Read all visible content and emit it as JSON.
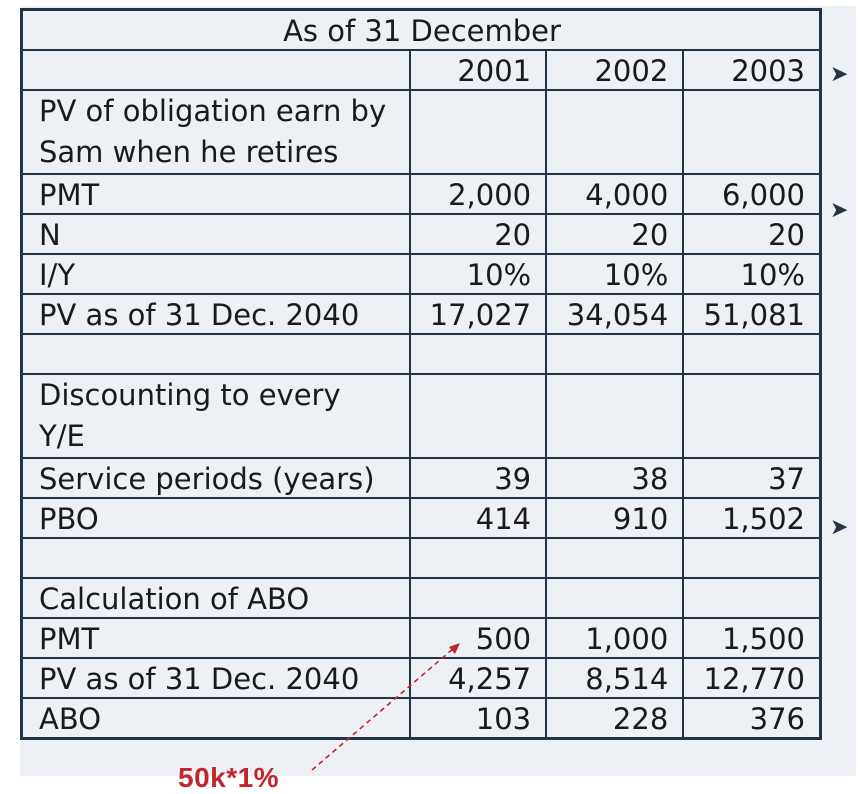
{
  "table": {
    "header_title": "As of 31 December",
    "years": [
      "2001",
      "2002",
      "2003"
    ],
    "rows": [
      {
        "label": "PV of obligation earn by Sam when he retires",
        "values": [
          "",
          "",
          ""
        ]
      },
      {
        "label": "PMT",
        "values": [
          "2,000",
          "4,000",
          "6,000"
        ]
      },
      {
        "label": "N",
        "values": [
          "20",
          "20",
          "20"
        ]
      },
      {
        "label": "I/Y",
        "values": [
          "10%",
          "10%",
          "10%"
        ]
      },
      {
        "label": "PV as of 31 Dec. 2040",
        "values": [
          "17,027",
          "34,054",
          "51,081"
        ]
      },
      {
        "label": "",
        "values": [
          "",
          "",
          ""
        ]
      },
      {
        "label": "Discounting to every Y/E",
        "values": [
          "",
          "",
          ""
        ]
      },
      {
        "label": "Service periods (years)",
        "values": [
          "39",
          "38",
          "37"
        ]
      },
      {
        "label": "PBO",
        "values": [
          "414",
          "910",
          "1,502"
        ]
      },
      {
        "label": "",
        "values": [
          "",
          "",
          ""
        ]
      },
      {
        "label": "Calculation of ABO",
        "values": [
          "",
          "",
          ""
        ]
      },
      {
        "label": "PMT",
        "values": [
          "500",
          "1,000",
          "1,500"
        ]
      },
      {
        "label": "PV as of 31 Dec. 2040",
        "values": [
          "4,257",
          "8,514",
          "12,770"
        ]
      },
      {
        "label": "ABO",
        "values": [
          "103",
          "228",
          "376"
        ]
      }
    ]
  },
  "bullet_glyph": "➤",
  "annotation": {
    "text": "50k*1%",
    "color": "#c0272d"
  },
  "colors": {
    "border": "#243447",
    "background": "#edf0f4"
  }
}
